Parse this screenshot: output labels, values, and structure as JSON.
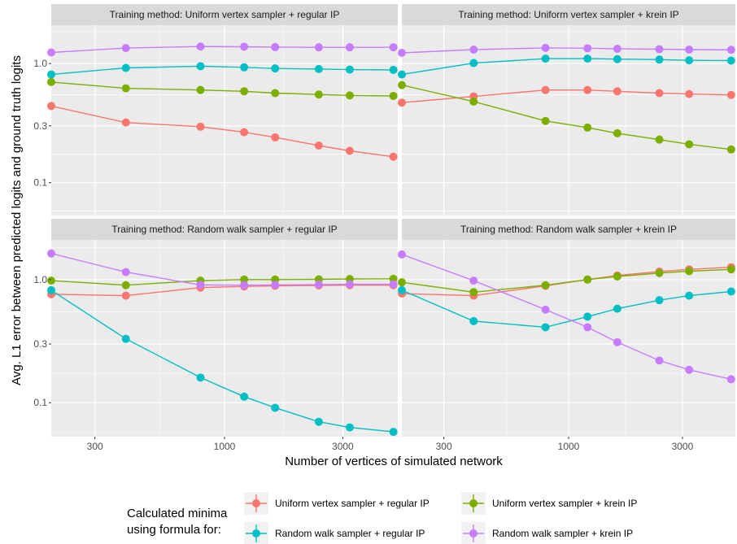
{
  "chart_data": {
    "type": "line",
    "xlabel": "Number of vertices of simulated network",
    "ylabel": "Avg. L1 error between predicted logits and ground truth logits",
    "x_scale": "log10",
    "y_scale": "log10",
    "xlim": [
      200,
      5000
    ],
    "ylim": [
      0.053,
      2.1
    ],
    "x_ticks": [
      {
        "value": 300,
        "label": "300"
      },
      {
        "value": 1000,
        "label": "1000"
      },
      {
        "value": 3000,
        "label": "3000"
      }
    ],
    "y_ticks": [
      {
        "value": 0.1,
        "label": "0.1"
      },
      {
        "value": 0.3,
        "label": "0.3"
      },
      {
        "value": 1.0,
        "label": "1.0"
      }
    ],
    "legend": {
      "title_lines": [
        "Calculated minima",
        "using formula for:"
      ],
      "position": "bottom",
      "entries": [
        {
          "name": "Uniform vertex sampler + regular IP",
          "color": "#F8766D"
        },
        {
          "name": "Uniform vertex sampler + krein IP",
          "color": "#7CAE00"
        },
        {
          "name": "Random walk sampler + regular IP",
          "color": "#00BFC4"
        },
        {
          "name": "Random walk sampler + krein IP",
          "color": "#C77CFF"
        }
      ]
    },
    "x": [
      200,
      400,
      800,
      1200,
      1600,
      2400,
      3200,
      4800
    ],
    "panels": [
      {
        "title": "Training method: Uniform vertex sampler + regular IP",
        "series": [
          {
            "name": "Uniform vertex sampler + regular IP",
            "values": [
              0.44,
              0.32,
              0.295,
              0.265,
              0.24,
              0.205,
              0.185,
              0.165
            ]
          },
          {
            "name": "Uniform vertex sampler + krein IP",
            "values": [
              0.7,
              0.62,
              0.6,
              0.585,
              0.565,
              0.55,
              0.54,
              0.535
            ]
          },
          {
            "name": "Random walk sampler + regular IP",
            "values": [
              0.81,
              0.92,
              0.95,
              0.93,
              0.91,
              0.9,
              0.89,
              0.885
            ]
          },
          {
            "name": "Random walk sampler + krein IP",
            "values": [
              1.24,
              1.35,
              1.39,
              1.385,
              1.375,
              1.37,
              1.37,
              1.37
            ]
          }
        ]
      },
      {
        "title": "Training method: Uniform vertex sampler + krein IP",
        "series": [
          {
            "name": "Uniform vertex sampler + regular IP",
            "values": [
              0.47,
              0.53,
              0.6,
              0.6,
              0.585,
              0.565,
              0.555,
              0.545
            ]
          },
          {
            "name": "Uniform vertex sampler + krein IP",
            "values": [
              0.66,
              0.48,
              0.33,
              0.29,
              0.26,
              0.23,
              0.21,
              0.19
            ]
          },
          {
            "name": "Random walk sampler + regular IP",
            "values": [
              0.81,
              1.01,
              1.1,
              1.1,
              1.09,
              1.08,
              1.065,
              1.06
            ]
          },
          {
            "name": "Random walk sampler + krein IP",
            "values": [
              1.23,
              1.31,
              1.355,
              1.345,
              1.33,
              1.32,
              1.31,
              1.305
            ]
          }
        ]
      },
      {
        "title": "Training method: Random walk sampler + regular IP",
        "series": [
          {
            "name": "Uniform vertex sampler + regular IP",
            "values": [
              0.76,
              0.74,
              0.86,
              0.88,
              0.89,
              0.895,
              0.9,
              0.9
            ]
          },
          {
            "name": "Uniform vertex sampler + krein IP",
            "values": [
              0.98,
              0.9,
              0.98,
              1.0,
              1.0,
              1.005,
              1.01,
              1.015
            ]
          },
          {
            "name": "Random walk sampler + regular IP",
            "values": [
              0.82,
              0.33,
              0.16,
              0.112,
              0.091,
              0.07,
              0.063,
              0.058
            ]
          },
          {
            "name": "Random walk sampler + krein IP",
            "values": [
              1.63,
              1.15,
              0.905,
              0.9,
              0.905,
              0.91,
              0.915,
              0.915
            ]
          }
        ]
      },
      {
        "title": "Training method: Random walk sampler + krein IP",
        "series": [
          {
            "name": "Uniform vertex sampler + regular IP",
            "values": [
              0.77,
              0.74,
              0.89,
              1.0,
              1.08,
              1.16,
              1.21,
              1.26
            ]
          },
          {
            "name": "Uniform vertex sampler + krein IP",
            "values": [
              0.95,
              0.79,
              0.9,
              1.0,
              1.06,
              1.13,
              1.17,
              1.21
            ]
          },
          {
            "name": "Random walk sampler + regular IP",
            "values": [
              0.82,
              0.46,
              0.41,
              0.5,
              0.58,
              0.68,
              0.74,
              0.8
            ]
          },
          {
            "name": "Random walk sampler + krein IP",
            "values": [
              1.6,
              0.98,
              0.57,
              0.41,
              0.31,
              0.22,
              0.185,
              0.155
            ]
          }
        ]
      }
    ]
  }
}
